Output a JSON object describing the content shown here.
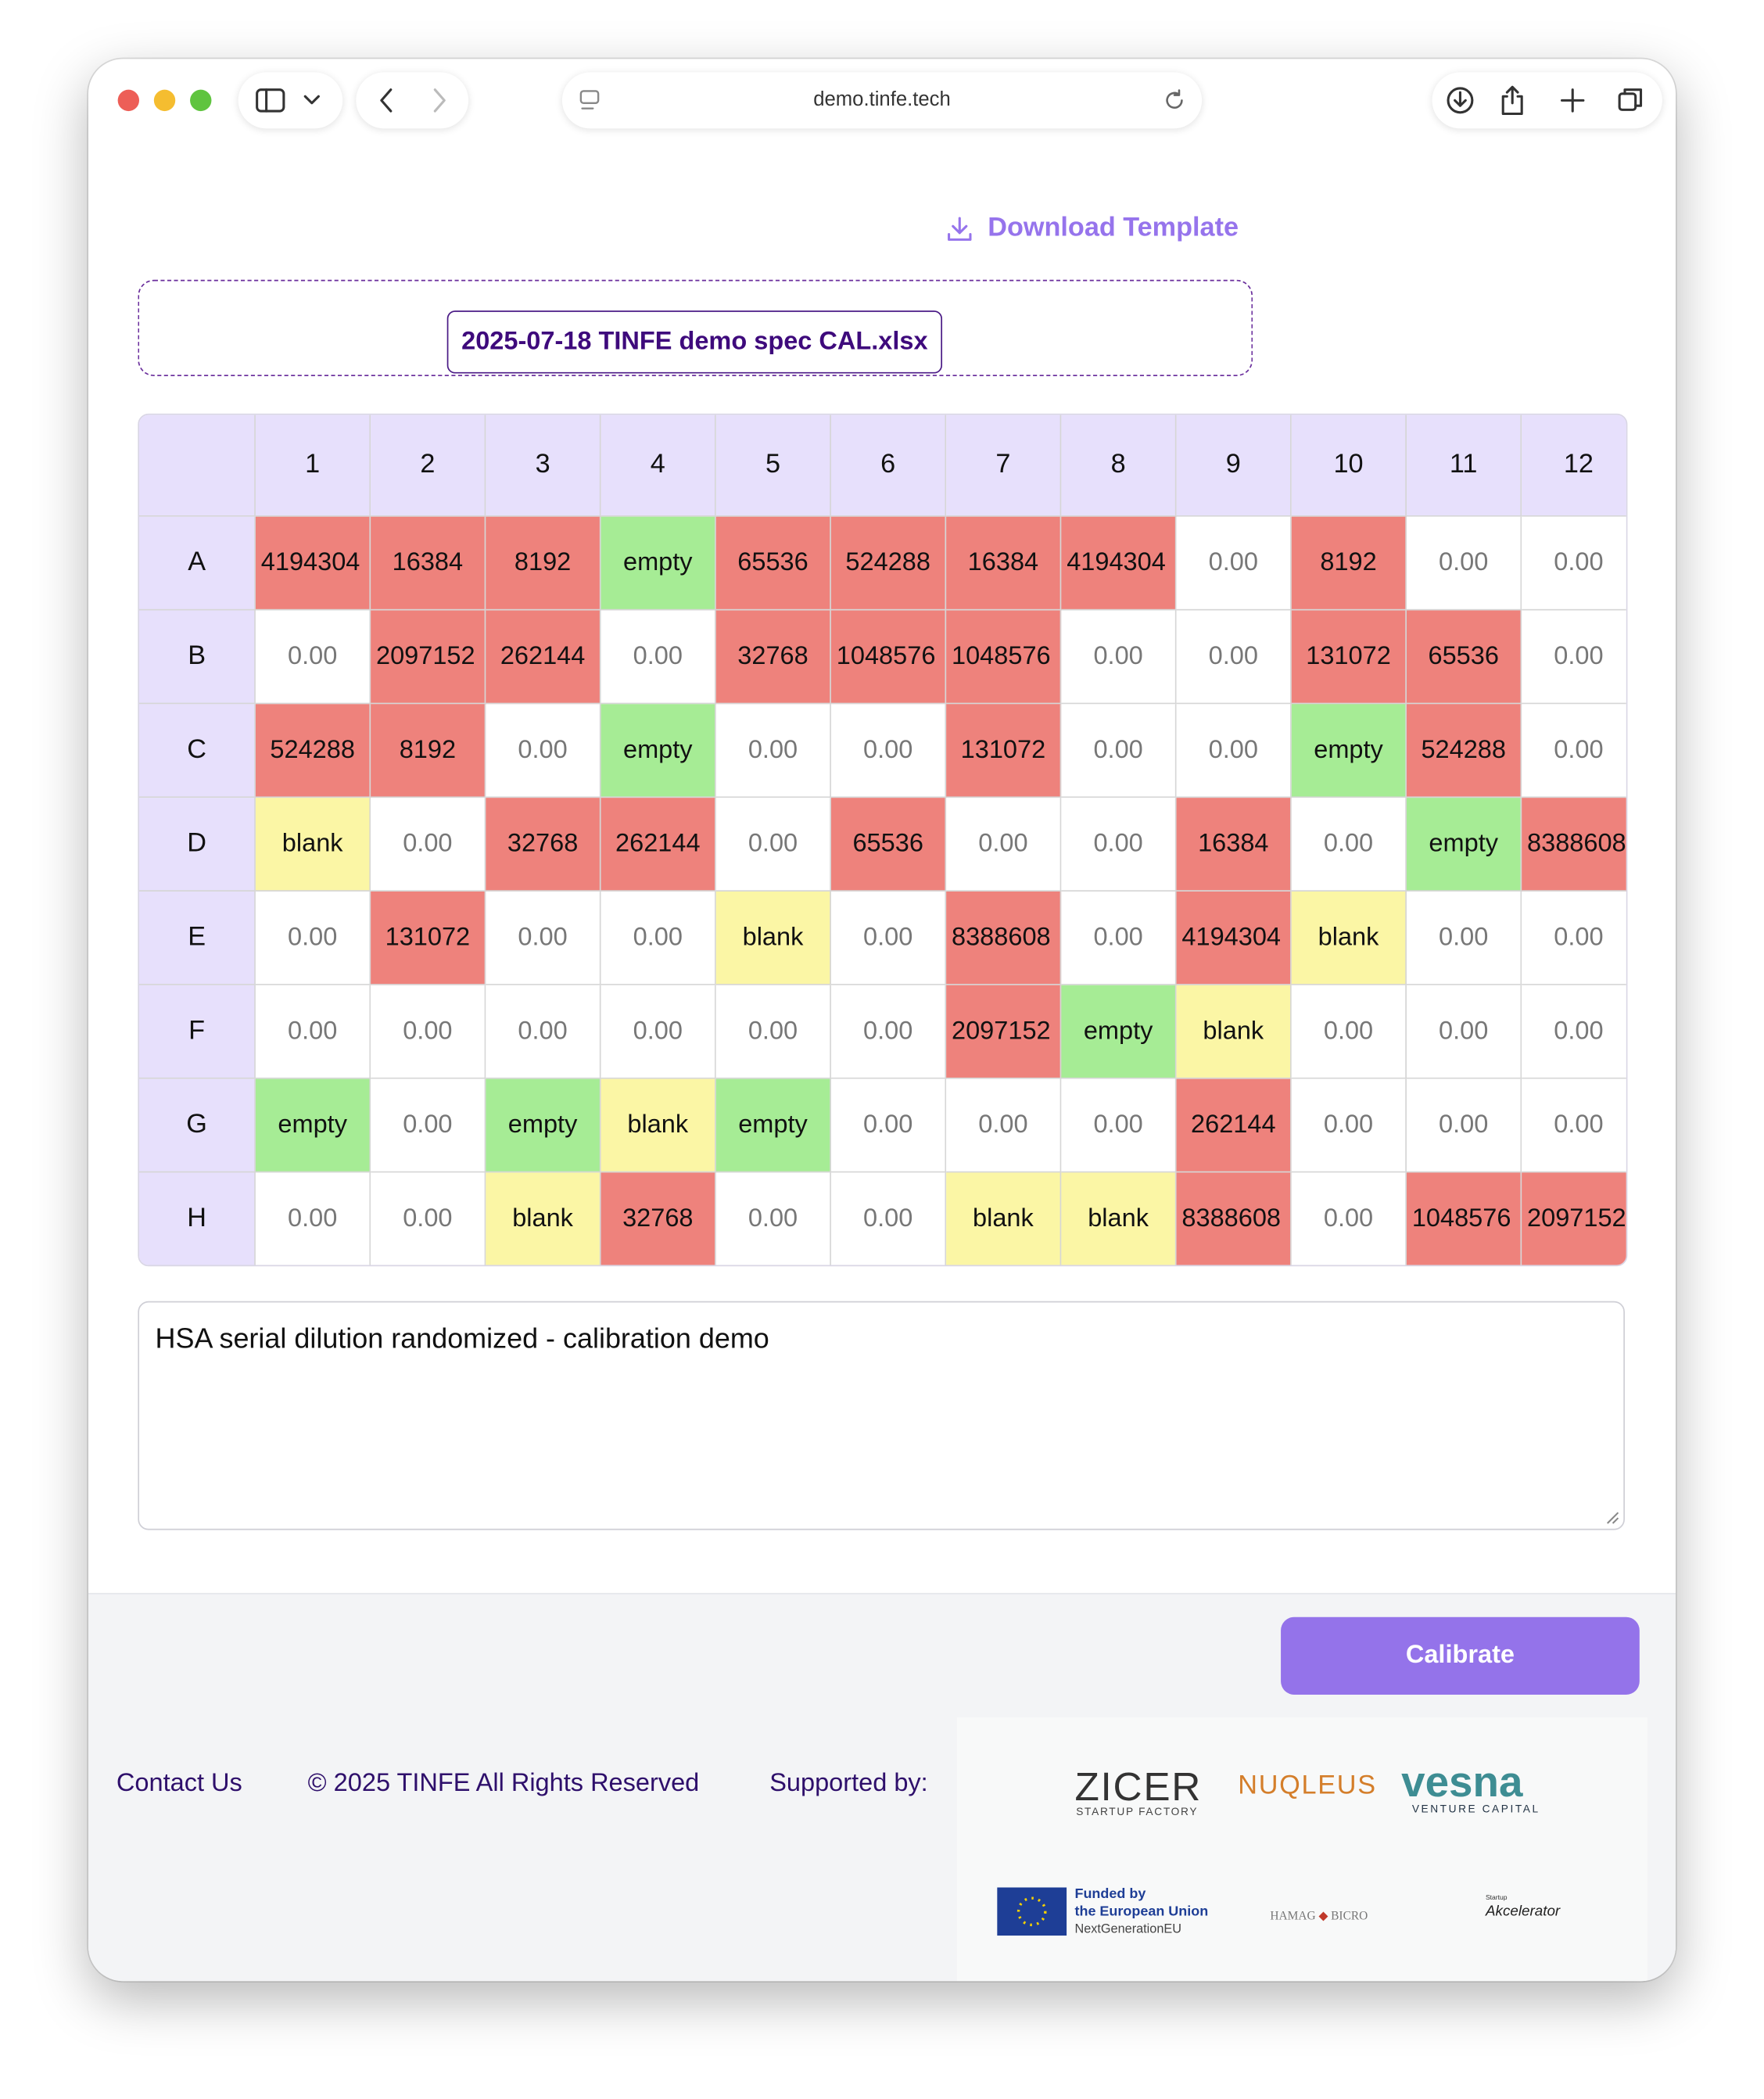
{
  "browser": {
    "url": "demo.tinfe.tech"
  },
  "page": {
    "download_link": "Download Template",
    "file_name": "2025-07-18 TINFE demo spec CAL.xlsx",
    "plate": {
      "columns": [
        "1",
        "2",
        "3",
        "4",
        "5",
        "6",
        "7",
        "8",
        "9",
        "10",
        "11",
        "12"
      ],
      "rows": [
        {
          "label": "A",
          "cells": [
            "4194304",
            "16384",
            "8192",
            "empty",
            "65536",
            "524288",
            "16384",
            "4194304",
            "0.00",
            "8192",
            "0.00",
            "0.00"
          ]
        },
        {
          "label": "B",
          "cells": [
            "0.00",
            "2097152",
            "262144",
            "0.00",
            "32768",
            "1048576",
            "1048576",
            "0.00",
            "0.00",
            "131072",
            "65536",
            "0.00"
          ]
        },
        {
          "label": "C",
          "cells": [
            "524288",
            "8192",
            "0.00",
            "empty",
            "0.00",
            "0.00",
            "131072",
            "0.00",
            "0.00",
            "empty",
            "524288",
            "0.00"
          ]
        },
        {
          "label": "D",
          "cells": [
            "blank",
            "0.00",
            "32768",
            "262144",
            "0.00",
            "65536",
            "0.00",
            "0.00",
            "16384",
            "0.00",
            "empty",
            "8388608"
          ]
        },
        {
          "label": "E",
          "cells": [
            "0.00",
            "131072",
            "0.00",
            "0.00",
            "blank",
            "0.00",
            "8388608",
            "0.00",
            "4194304",
            "blank",
            "0.00",
            "0.00"
          ]
        },
        {
          "label": "F",
          "cells": [
            "0.00",
            "0.00",
            "0.00",
            "0.00",
            "0.00",
            "0.00",
            "2097152",
            "empty",
            "blank",
            "0.00",
            "0.00",
            "0.00"
          ]
        },
        {
          "label": "G",
          "cells": [
            "empty",
            "0.00",
            "empty",
            "blank",
            "empty",
            "0.00",
            "0.00",
            "0.00",
            "262144",
            "0.00",
            "0.00",
            "0.00"
          ]
        },
        {
          "label": "H",
          "cells": [
            "0.00",
            "0.00",
            "blank",
            "32768",
            "0.00",
            "0.00",
            "blank",
            "blank",
            "8388608",
            "0.00",
            "1048576",
            "2097152"
          ]
        }
      ]
    },
    "notes": "HSA serial dilution randomized - calibration demo",
    "calibrate_button": "Calibrate"
  },
  "footer": {
    "contact": "Contact Us",
    "copyright": "© 2025 TINFE All Rights Reserved",
    "supported_by": "Supported by:",
    "logos": {
      "zicer": "ZICER",
      "zicer_sub": "STARTUP FACTORY",
      "nuqleus": "NUQLEUS",
      "vesna": "vesna",
      "vesna_sub": "VENTURE CAPITAL",
      "eu_1": "Funded by",
      "eu_2": "the European Union",
      "eu_3": "NextGenerationEU",
      "hamag": "HAMAG",
      "bicro": "BICRO",
      "akc_small": "Startup",
      "akc": "Akcelerator"
    }
  }
}
